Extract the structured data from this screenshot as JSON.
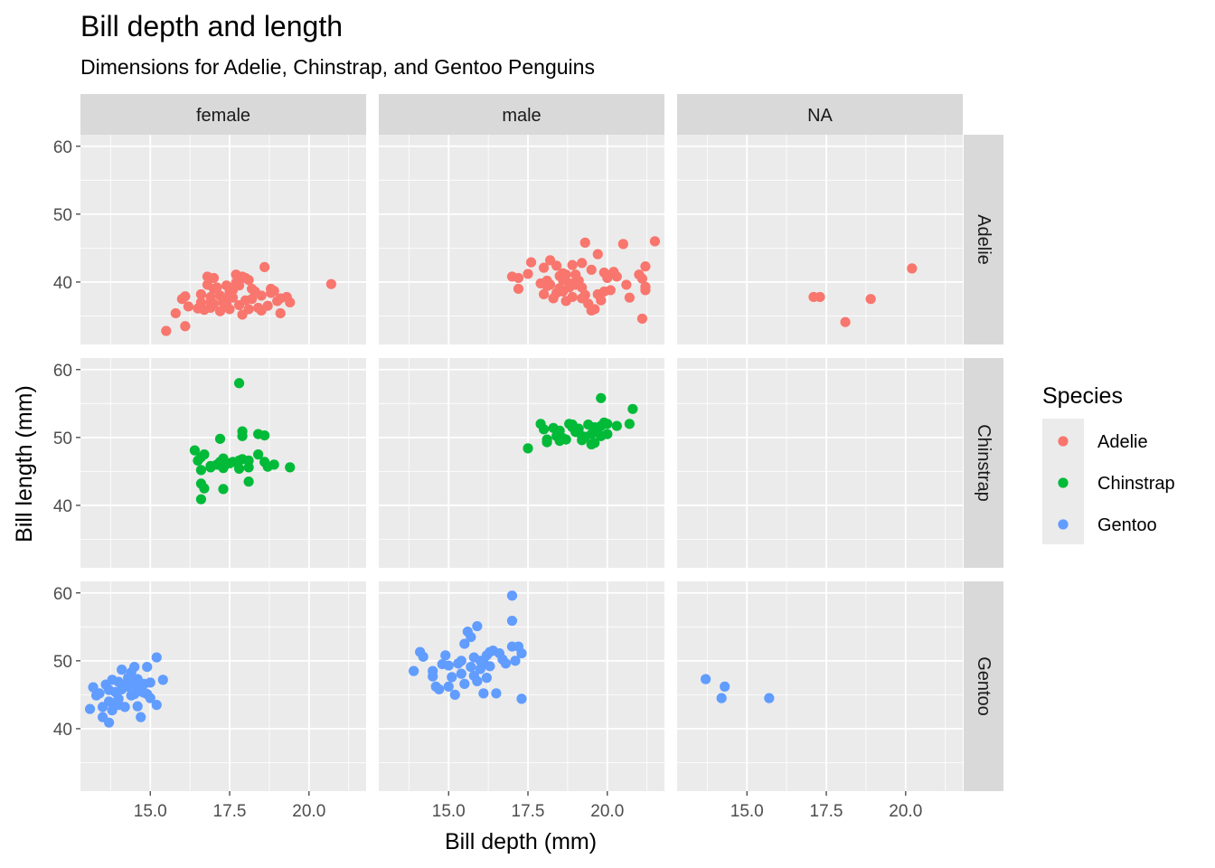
{
  "chart_data": {
    "type": "scatter",
    "title": "Bill depth and length",
    "subtitle": "Dimensions for Adelie, Chinstrap, and Gentoo Penguins",
    "xlabel": "Bill depth (mm)",
    "ylabel": "Bill length (mm)",
    "xlim": [
      12.8,
      21.8
    ],
    "ylim": [
      30.8,
      61.7
    ],
    "xticks": [
      "15.0",
      "17.5",
      "20.0"
    ],
    "yticks": [
      "40",
      "50",
      "60"
    ],
    "grid": true,
    "facet_columns": [
      "female",
      "male",
      "NA"
    ],
    "facet_rows": [
      "Adelie",
      "Chinstrap",
      "Gentoo"
    ],
    "legend": {
      "title": "Species",
      "position": "right",
      "entries": [
        {
          "label": "Adelie",
          "color": "#F8766D"
        },
        {
          "label": "Chinstrap",
          "color": "#00BA38"
        },
        {
          "label": "Gentoo",
          "color": "#619CFF"
        }
      ]
    },
    "panels": [
      {
        "col": "female",
        "row": "Adelie",
        "color": "#F8766D",
        "points": [
          [
            15.5,
            32.8
          ],
          [
            16.1,
            33.5
          ],
          [
            15.8,
            35.4
          ],
          [
            16.2,
            36.4
          ],
          [
            16.0,
            37.5
          ],
          [
            16.1,
            37.9
          ],
          [
            16.6,
            38.2
          ],
          [
            16.6,
            37.0
          ],
          [
            16.9,
            37.8
          ],
          [
            16.8,
            39.6
          ],
          [
            16.8,
            40.8
          ],
          [
            17.0,
            40.6
          ],
          [
            17.1,
            39.2
          ],
          [
            17.2,
            38.0
          ],
          [
            17.3,
            37.4
          ],
          [
            16.9,
            36.2
          ],
          [
            17.2,
            35.7
          ],
          [
            17.5,
            36.0
          ],
          [
            17.3,
            37.0
          ],
          [
            17.6,
            38.8
          ],
          [
            17.8,
            39.5
          ],
          [
            17.9,
            40.8
          ],
          [
            17.7,
            41.1
          ],
          [
            18.0,
            40.6
          ],
          [
            18.1,
            40.3
          ],
          [
            18.2,
            39.0
          ],
          [
            18.3,
            38.6
          ],
          [
            18.5,
            38.0
          ],
          [
            18.0,
            37.3
          ],
          [
            17.8,
            36.6
          ],
          [
            17.4,
            36.7
          ],
          [
            18.1,
            36.0
          ],
          [
            18.4,
            36.2
          ],
          [
            18.5,
            35.8
          ],
          [
            17.9,
            35.2
          ],
          [
            17.0,
            36.8
          ],
          [
            16.7,
            35.9
          ],
          [
            16.5,
            36.1
          ],
          [
            17.6,
            37.7
          ],
          [
            17.7,
            39.9
          ],
          [
            17.4,
            39.5
          ],
          [
            18.6,
            42.2
          ],
          [
            18.8,
            39.0
          ],
          [
            18.9,
            38.7
          ],
          [
            19.0,
            37.2
          ],
          [
            18.7,
            36.5
          ],
          [
            19.1,
            35.4
          ],
          [
            18.8,
            38.4
          ],
          [
            19.3,
            37.8
          ],
          [
            19.4,
            37.0
          ],
          [
            19.1,
            37.6
          ],
          [
            17.0,
            39.0
          ],
          [
            16.9,
            37.0
          ],
          [
            17.5,
            38.5
          ],
          [
            18.2,
            37.5
          ],
          [
            20.7,
            39.7
          ]
        ]
      },
      {
        "col": "male",
        "row": "Adelie",
        "color": "#F8766D",
        "points": [
          [
            17.0,
            40.8
          ],
          [
            17.2,
            40.6
          ],
          [
            17.2,
            39.0
          ],
          [
            17.5,
            41.2
          ],
          [
            17.6,
            42.9
          ],
          [
            18.0,
            42.1
          ],
          [
            18.1,
            40.2
          ],
          [
            17.9,
            39.8
          ],
          [
            18.2,
            39.6
          ],
          [
            18.0,
            38.2
          ],
          [
            18.3,
            37.6
          ],
          [
            18.4,
            38.4
          ],
          [
            18.5,
            39.1
          ],
          [
            18.6,
            40.3
          ],
          [
            18.6,
            41.3
          ],
          [
            18.7,
            41.1
          ],
          [
            18.8,
            39.8
          ],
          [
            18.4,
            42.4
          ],
          [
            18.2,
            43.2
          ],
          [
            18.9,
            42.5
          ],
          [
            19.0,
            41.1
          ],
          [
            19.1,
            40.2
          ],
          [
            19.2,
            39.2
          ],
          [
            19.0,
            39.6
          ],
          [
            18.9,
            37.8
          ],
          [
            18.7,
            37.2
          ],
          [
            19.3,
            38.1
          ],
          [
            19.4,
            36.8
          ],
          [
            19.6,
            36.0
          ],
          [
            19.5,
            35.8
          ],
          [
            19.2,
            37.6
          ],
          [
            19.7,
            38.2
          ],
          [
            19.8,
            37.3
          ],
          [
            20.0,
            40.6
          ],
          [
            19.9,
            41.4
          ],
          [
            19.5,
            41.8
          ],
          [
            19.2,
            42.8
          ],
          [
            19.7,
            44.1
          ],
          [
            19.3,
            45.8
          ],
          [
            20.2,
            41.5
          ],
          [
            20.3,
            40.8
          ],
          [
            20.6,
            39.6
          ],
          [
            20.1,
            38.8
          ],
          [
            20.7,
            37.7
          ],
          [
            21.0,
            41.1
          ],
          [
            21.1,
            40.5
          ],
          [
            21.2,
            39.3
          ],
          [
            21.2,
            42.3
          ],
          [
            21.5,
            46.0
          ],
          [
            20.5,
            45.6
          ],
          [
            21.1,
            34.6
          ],
          [
            21.2,
            38.8
          ],
          [
            18.5,
            40.9
          ],
          [
            18.6,
            38.6
          ],
          [
            18.8,
            39.2
          ],
          [
            18.1,
            39.4
          ],
          [
            19.9,
            38.6
          ],
          [
            19.0,
            40.0
          ]
        ]
      },
      {
        "col": "NA",
        "row": "Adelie",
        "color": "#F8766D",
        "points": [
          [
            17.1,
            37.8
          ],
          [
            17.3,
            37.8
          ],
          [
            18.9,
            37.5
          ],
          [
            18.1,
            34.1
          ],
          [
            20.2,
            42.0
          ]
        ]
      },
      {
        "col": "female",
        "row": "Chinstrap",
        "color": "#00BA38",
        "points": [
          [
            16.4,
            48.1
          ],
          [
            16.5,
            46.6
          ],
          [
            16.6,
            47.1
          ],
          [
            16.7,
            47.5
          ],
          [
            16.6,
            45.2
          ],
          [
            16.6,
            43.2
          ],
          [
            16.7,
            42.5
          ],
          [
            16.6,
            40.9
          ],
          [
            16.9,
            45.6
          ],
          [
            17.1,
            46.0
          ],
          [
            17.3,
            45.5
          ],
          [
            17.3,
            46.9
          ],
          [
            17.3,
            46.4
          ],
          [
            17.4,
            46.1
          ],
          [
            17.3,
            42.4
          ],
          [
            17.2,
            49.8
          ],
          [
            17.5,
            46.2
          ],
          [
            17.6,
            46.4
          ],
          [
            17.8,
            46.6
          ],
          [
            17.9,
            46.8
          ],
          [
            17.8,
            45.4
          ],
          [
            17.9,
            50.9
          ],
          [
            17.9,
            50.2
          ],
          [
            17.8,
            58.0
          ],
          [
            18.1,
            46.6
          ],
          [
            18.1,
            43.5
          ],
          [
            18.1,
            45.6
          ],
          [
            18.4,
            47.5
          ],
          [
            18.4,
            50.5
          ],
          [
            18.6,
            50.3
          ],
          [
            18.6,
            46.4
          ],
          [
            18.7,
            45.7
          ],
          [
            18.9,
            46.0
          ],
          [
            19.4,
            45.6
          ],
          [
            16.9,
            45.8
          ],
          [
            17.2,
            46.4
          ]
        ]
      },
      {
        "col": "male",
        "row": "Chinstrap",
        "color": "#00BA38",
        "points": [
          [
            17.5,
            48.4
          ],
          [
            17.9,
            52.0
          ],
          [
            18.0,
            51.2
          ],
          [
            18.1,
            49.3
          ],
          [
            18.1,
            49.7
          ],
          [
            18.3,
            51.4
          ],
          [
            18.4,
            50.2
          ],
          [
            18.5,
            51.0
          ],
          [
            18.6,
            49.9
          ],
          [
            18.7,
            49.7
          ],
          [
            18.8,
            52.0
          ],
          [
            18.9,
            51.5
          ],
          [
            19.0,
            50.8
          ],
          [
            19.1,
            51.3
          ],
          [
            19.2,
            49.6
          ],
          [
            19.3,
            50.1
          ],
          [
            19.4,
            51.9
          ],
          [
            19.5,
            50.5
          ],
          [
            19.5,
            49.0
          ],
          [
            19.6,
            49.2
          ],
          [
            19.7,
            50.7
          ],
          [
            19.8,
            51.7
          ],
          [
            19.8,
            50.2
          ],
          [
            19.9,
            52.2
          ],
          [
            20.0,
            52.0
          ],
          [
            20.0,
            50.5
          ],
          [
            19.6,
            51.5
          ],
          [
            20.3,
            51.7
          ],
          [
            20.7,
            52.0
          ],
          [
            20.8,
            54.2
          ],
          [
            19.8,
            55.8
          ],
          [
            19.5,
            49.0
          ],
          [
            18.5,
            49.5
          ],
          [
            19.2,
            50.2
          ],
          [
            18.9,
            51.9
          ]
        ]
      },
      {
        "col": "female",
        "row": "Gentoo",
        "color": "#619CFF",
        "points": [
          [
            13.1,
            42.9
          ],
          [
            13.2,
            46.1
          ],
          [
            13.3,
            44.9
          ],
          [
            13.4,
            45.2
          ],
          [
            13.5,
            43.2
          ],
          [
            13.5,
            41.7
          ],
          [
            13.6,
            46.5
          ],
          [
            13.7,
            45.7
          ],
          [
            13.7,
            44.0
          ],
          [
            13.7,
            40.9
          ],
          [
            13.8,
            42.7
          ],
          [
            13.8,
            47.2
          ],
          [
            13.9,
            45.4
          ],
          [
            14.0,
            43.5
          ],
          [
            14.0,
            44.4
          ],
          [
            14.1,
            45.8
          ],
          [
            14.1,
            48.7
          ],
          [
            14.2,
            46.5
          ],
          [
            14.2,
            43.2
          ],
          [
            14.3,
            46.2
          ],
          [
            14.3,
            47.5
          ],
          [
            14.4,
            44.9
          ],
          [
            14.4,
            48.3
          ],
          [
            14.5,
            45.1
          ],
          [
            14.5,
            46.8
          ],
          [
            14.5,
            49.1
          ],
          [
            14.6,
            47.3
          ],
          [
            14.6,
            43.3
          ],
          [
            14.7,
            45.5
          ],
          [
            14.7,
            41.7
          ],
          [
            14.8,
            45.3
          ],
          [
            14.8,
            46.6
          ],
          [
            14.9,
            49.1
          ],
          [
            14.9,
            45.1
          ],
          [
            15.0,
            46.8
          ],
          [
            15.0,
            44.5
          ],
          [
            15.2,
            50.5
          ],
          [
            15.2,
            43.5
          ],
          [
            15.4,
            47.2
          ],
          [
            14.2,
            46.4
          ],
          [
            14.6,
            45.7
          ],
          [
            14.4,
            47.8
          ],
          [
            13.9,
            43.8
          ],
          [
            14.0,
            46.9
          ]
        ]
      },
      {
        "col": "male",
        "row": "Gentoo",
        "color": "#619CFF",
        "points": [
          [
            13.9,
            48.5
          ],
          [
            14.1,
            51.3
          ],
          [
            14.2,
            50.6
          ],
          [
            14.5,
            48.5
          ],
          [
            14.5,
            47.7
          ],
          [
            14.6,
            46.2
          ],
          [
            14.7,
            45.8
          ],
          [
            14.8,
            49.5
          ],
          [
            14.9,
            50.8
          ],
          [
            15.0,
            49.3
          ],
          [
            15.0,
            46.2
          ],
          [
            15.1,
            47.6
          ],
          [
            15.2,
            45.0
          ],
          [
            15.3,
            49.6
          ],
          [
            15.4,
            48.1
          ],
          [
            15.4,
            50.0
          ],
          [
            15.5,
            52.5
          ],
          [
            15.6,
            54.3
          ],
          [
            15.7,
            53.5
          ],
          [
            15.7,
            49.1
          ],
          [
            15.8,
            50.5
          ],
          [
            15.8,
            47.8
          ],
          [
            15.9,
            55.1
          ],
          [
            16.0,
            50.0
          ],
          [
            16.0,
            48.8
          ],
          [
            16.1,
            49.8
          ],
          [
            16.1,
            45.2
          ],
          [
            16.2,
            50.8
          ],
          [
            16.2,
            47.5
          ],
          [
            16.3,
            51.3
          ],
          [
            16.3,
            49.2
          ],
          [
            16.4,
            51.5
          ],
          [
            16.5,
            45.2
          ],
          [
            16.6,
            51.1
          ],
          [
            16.7,
            50.2
          ],
          [
            17.0,
            59.6
          ],
          [
            17.0,
            55.9
          ],
          [
            17.0,
            52.1
          ],
          [
            17.1,
            50.0
          ],
          [
            17.2,
            52.1
          ],
          [
            17.3,
            51.1
          ],
          [
            17.3,
            44.4
          ],
          [
            16.8,
            49.6
          ],
          [
            15.9,
            47.0
          ],
          [
            15.5,
            46.6
          ]
        ]
      },
      {
        "col": "NA",
        "row": "Gentoo",
        "color": "#619CFF",
        "points": [
          [
            13.7,
            47.3
          ],
          [
            14.2,
            44.5
          ],
          [
            14.3,
            46.2
          ],
          [
            15.7,
            44.5
          ]
        ]
      }
    ]
  }
}
